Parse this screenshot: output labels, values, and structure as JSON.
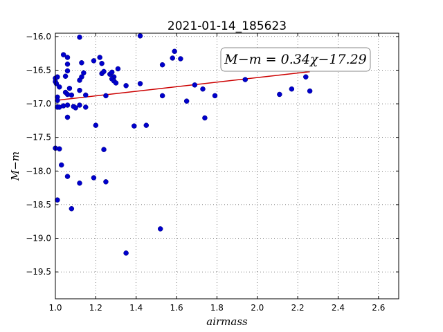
{
  "chart_data": {
    "type": "scatter",
    "title": "2021-01-14_185623",
    "xlabel": "airmass",
    "ylabel": "M−m",
    "xlim": [
      1.0,
      2.7
    ],
    "ylim": [
      -15.95,
      -19.9
    ],
    "y_inverted": true,
    "grid": true,
    "xticks": [
      "1.0",
      "1.2",
      "1.4",
      "1.6",
      "1.8",
      "2.0",
      "2.2",
      "2.4",
      "2.6"
    ],
    "yticks": [
      "−16.0",
      "−16.5",
      "−17.0",
      "−17.5",
      "−18.0",
      "−18.5",
      "−19.0",
      "−19.5"
    ],
    "annotation": "M−m = 0.34χ−17.29",
    "point_color": "#0000cc",
    "fit_color": "#cc0000",
    "fit": {
      "slope": 0.34,
      "intercept": -17.29
    },
    "points": [
      [
        1.0,
        -16.62
      ],
      [
        1.0,
        -16.67
      ],
      [
        1.005,
        -16.7
      ],
      [
        1.01,
        -16.6
      ],
      [
        1.02,
        -16.75
      ],
      [
        1.01,
        -16.9
      ],
      [
        1.01,
        -16.95
      ],
      [
        1.01,
        -17.05
      ],
      [
        1.02,
        -17.05
      ],
      [
        1.0,
        -17.66
      ],
      [
        1.02,
        -17.67
      ],
      [
        1.03,
        -17.91
      ],
      [
        1.01,
        -18.43
      ],
      [
        1.04,
        -16.27
      ],
      [
        1.06,
        -16.31
      ],
      [
        1.06,
        -16.41
      ],
      [
        1.06,
        -16.51
      ],
      [
        1.05,
        -16.59
      ],
      [
        1.05,
        -16.83
      ],
      [
        1.06,
        -16.86
      ],
      [
        1.07,
        -16.77
      ],
      [
        1.08,
        -16.87
      ],
      [
        1.04,
        -17.03
      ],
      [
        1.06,
        -17.02
      ],
      [
        1.09,
        -17.04
      ],
      [
        1.1,
        -17.06
      ],
      [
        1.06,
        -17.2
      ],
      [
        1.06,
        -18.08
      ],
      [
        1.08,
        -18.56
      ],
      [
        1.12,
        -16.01
      ],
      [
        1.13,
        -16.39
      ],
      [
        1.14,
        -16.54
      ],
      [
        1.13,
        -16.6
      ],
      [
        1.12,
        -16.65
      ],
      [
        1.12,
        -16.8
      ],
      [
        1.15,
        -16.87
      ],
      [
        1.12,
        -17.02
      ],
      [
        1.15,
        -17.05
      ],
      [
        1.12,
        -18.18
      ],
      [
        1.19,
        -16.36
      ],
      [
        1.22,
        -16.31
      ],
      [
        1.23,
        -16.4
      ],
      [
        1.23,
        -16.55
      ],
      [
        1.24,
        -16.52
      ],
      [
        1.27,
        -16.56
      ],
      [
        1.28,
        -16.53
      ],
      [
        1.29,
        -16.6
      ],
      [
        1.28,
        -16.63
      ],
      [
        1.29,
        -16.66
      ],
      [
        1.3,
        -16.69
      ],
      [
        1.31,
        -16.48
      ],
      [
        1.25,
        -16.88
      ],
      [
        1.2,
        -17.32
      ],
      [
        1.24,
        -17.68
      ],
      [
        1.25,
        -18.16
      ],
      [
        1.19,
        -18.1
      ],
      [
        1.35,
        -16.73
      ],
      [
        1.39,
        -17.33
      ],
      [
        1.42,
        -15.99
      ],
      [
        1.42,
        -16.7
      ],
      [
        1.45,
        -17.32
      ],
      [
        1.53,
        -16.42
      ],
      [
        1.53,
        -16.88
      ],
      [
        1.52,
        -18.86
      ],
      [
        1.35,
        -19.22
      ],
      [
        1.58,
        -16.32
      ],
      [
        1.59,
        -16.22
      ],
      [
        1.62,
        -16.33
      ],
      [
        1.65,
        -16.96
      ],
      [
        1.69,
        -16.72
      ],
      [
        1.73,
        -16.78
      ],
      [
        1.74,
        -17.21
      ],
      [
        1.79,
        -16.88
      ],
      [
        1.94,
        -16.64
      ],
      [
        2.11,
        -16.86
      ],
      [
        2.17,
        -16.78
      ],
      [
        2.24,
        -16.6
      ],
      [
        2.26,
        -16.81
      ]
    ]
  }
}
